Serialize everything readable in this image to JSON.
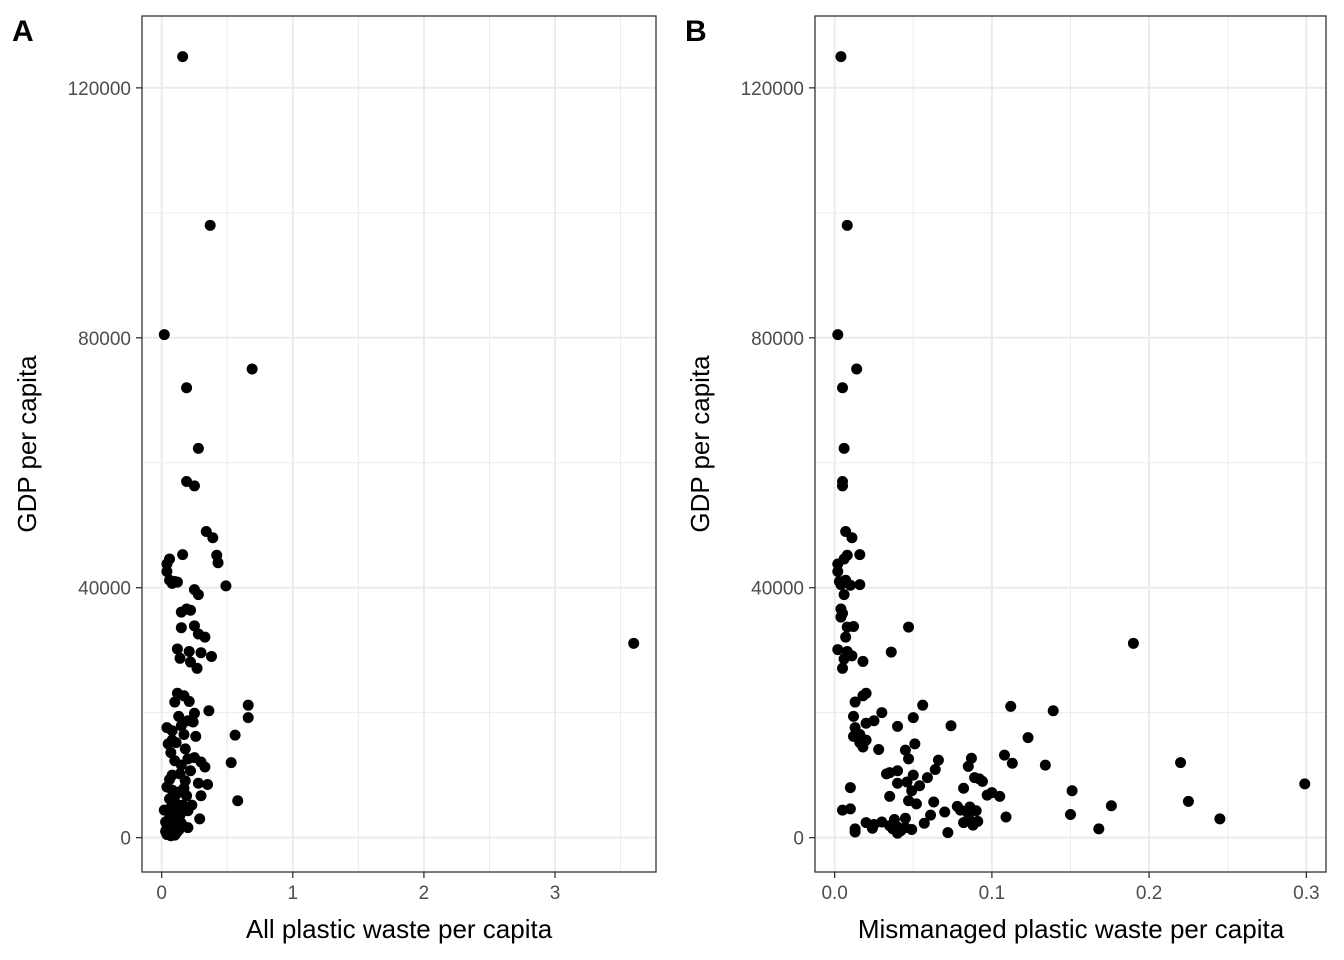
{
  "chart_data": [
    {
      "type": "scatter",
      "panel_label": "A",
      "xlabel": "All plastic waste per capita",
      "ylabel": "GDP per capita",
      "xlim": [
        -0.15,
        3.77
      ],
      "ylim": [
        -5500,
        131500
      ],
      "xticks": [
        0,
        1,
        2,
        3
      ],
      "xtick_labels": [
        "0",
        "1",
        "2",
        "3"
      ],
      "yticks": [
        0,
        40000,
        80000,
        120000
      ],
      "ytick_labels": [
        "0",
        "40000",
        "80000",
        "120000"
      ],
      "grid": true,
      "points": [
        [
          0.16,
          125000
        ],
        [
          0.37,
          98000
        ],
        [
          0.02,
          80500
        ],
        [
          0.69,
          75000
        ],
        [
          0.19,
          72000
        ],
        [
          0.28,
          62300
        ],
        [
          0.19,
          57000
        ],
        [
          0.25,
          56300
        ],
        [
          0.34,
          49000
        ],
        [
          0.39,
          48000
        ],
        [
          0.42,
          45200
        ],
        [
          0.43,
          44000
        ],
        [
          0.16,
          45300
        ],
        [
          0.06,
          44600
        ],
        [
          0.04,
          43800
        ],
        [
          0.04,
          42600
        ],
        [
          0.1,
          41000
        ],
        [
          0.06,
          41200
        ],
        [
          0.08,
          40700
        ],
        [
          0.12,
          40900
        ],
        [
          0.25,
          39700
        ],
        [
          0.49,
          40300
        ],
        [
          0.28,
          38900
        ],
        [
          0.19,
          36600
        ],
        [
          0.15,
          36100
        ],
        [
          0.22,
          36400
        ],
        [
          0.15,
          33600
        ],
        [
          0.25,
          33900
        ],
        [
          0.28,
          32600
        ],
        [
          0.33,
          32100
        ],
        [
          0.12,
          30200
        ],
        [
          0.21,
          29800
        ],
        [
          0.3,
          29600
        ],
        [
          0.38,
          29000
        ],
        [
          0.14,
          28700
        ],
        [
          0.22,
          28100
        ],
        [
          0.27,
          27100
        ],
        [
          3.6,
          31100
        ],
        [
          0.12,
          23100
        ],
        [
          0.17,
          22700
        ],
        [
          0.1,
          21700
        ],
        [
          0.21,
          21800
        ],
        [
          0.66,
          21200
        ],
        [
          0.36,
          20300
        ],
        [
          0.25,
          19900
        ],
        [
          0.66,
          19200
        ],
        [
          0.13,
          19400
        ],
        [
          0.2,
          18700
        ],
        [
          0.24,
          18500
        ],
        [
          0.04,
          17600
        ],
        [
          0.15,
          17900
        ],
        [
          0.08,
          17100
        ],
        [
          0.17,
          16500
        ],
        [
          0.26,
          16200
        ],
        [
          0.56,
          16400
        ],
        [
          0.08,
          15600
        ],
        [
          0.11,
          15200
        ],
        [
          0.05,
          15000
        ],
        [
          0.18,
          14200
        ],
        [
          0.07,
          13600
        ],
        [
          0.25,
          12800
        ],
        [
          0.1,
          12300
        ],
        [
          0.2,
          12600
        ],
        [
          0.3,
          12100
        ],
        [
          0.53,
          12000
        ],
        [
          0.15,
          11600
        ],
        [
          0.33,
          11300
        ],
        [
          0.22,
          10700
        ],
        [
          0.08,
          10000
        ],
        [
          0.14,
          10200
        ],
        [
          0.06,
          9300
        ],
        [
          0.18,
          9100
        ],
        [
          0.28,
          8700
        ],
        [
          0.35,
          8500
        ],
        [
          0.04,
          8100
        ],
        [
          0.08,
          7600
        ],
        [
          0.17,
          7900
        ],
        [
          0.13,
          7300
        ],
        [
          0.11,
          6900
        ],
        [
          0.19,
          6700
        ],
        [
          0.3,
          6700
        ],
        [
          0.06,
          6200
        ],
        [
          0.58,
          5900
        ],
        [
          0.1,
          5700
        ],
        [
          0.16,
          5200
        ],
        [
          0.23,
          5200
        ],
        [
          0.12,
          4800
        ],
        [
          0.06,
          4600
        ],
        [
          0.2,
          4300
        ],
        [
          0.02,
          4400
        ],
        [
          0.1,
          4000
        ],
        [
          0.14,
          3600
        ],
        [
          0.07,
          3500
        ],
        [
          0.08,
          3100
        ],
        [
          0.29,
          3000
        ],
        [
          0.05,
          2800
        ],
        [
          0.12,
          2600
        ],
        [
          0.03,
          2500
        ],
        [
          0.15,
          2300
        ],
        [
          0.06,
          2100
        ],
        [
          0.09,
          1900
        ],
        [
          0.2,
          1600
        ],
        [
          0.04,
          1500
        ],
        [
          0.1,
          1400
        ],
        [
          0.07,
          1300
        ],
        [
          0.13,
          1200
        ],
        [
          0.05,
          1100
        ],
        [
          0.03,
          1000
        ],
        [
          0.09,
          900
        ],
        [
          0.06,
          800
        ],
        [
          0.11,
          700
        ],
        [
          0.08,
          600
        ],
        [
          0.04,
          500
        ],
        [
          0.1,
          400
        ],
        [
          0.07,
          300
        ]
      ]
    },
    {
      "type": "scatter",
      "panel_label": "B",
      "xlabel": "Mismanaged plastic waste per capita",
      "ylabel": "GDP per capita",
      "xlim": [
        -0.0125,
        0.3125
      ],
      "ylim": [
        -5500,
        131500
      ],
      "xticks": [
        0,
        0.1,
        0.2,
        0.3
      ],
      "xtick_labels": [
        "0.0",
        "0.1",
        "0.2",
        "0.3"
      ],
      "yticks": [
        0,
        40000,
        80000,
        120000
      ],
      "ytick_labels": [
        "0",
        "40000",
        "80000",
        "120000"
      ],
      "grid": true,
      "points": [
        [
          0.004,
          125000
        ],
        [
          0.008,
          98000
        ],
        [
          0.002,
          80500
        ],
        [
          0.014,
          75000
        ],
        [
          0.005,
          72000
        ],
        [
          0.006,
          62300
        ],
        [
          0.005,
          57000
        ],
        [
          0.005,
          56300
        ],
        [
          0.007,
          49000
        ],
        [
          0.011,
          48000
        ],
        [
          0.008,
          45200
        ],
        [
          0.016,
          45300
        ],
        [
          0.006,
          44600
        ],
        [
          0.002,
          43800
        ],
        [
          0.002,
          42600
        ],
        [
          0.003,
          41000
        ],
        [
          0.004,
          40500
        ],
        [
          0.007,
          41200
        ],
        [
          0.01,
          40400
        ],
        [
          0.016,
          40500
        ],
        [
          0.006,
          38900
        ],
        [
          0.004,
          36600
        ],
        [
          0.005,
          35900
        ],
        [
          0.004,
          35300
        ],
        [
          0.008,
          33700
        ],
        [
          0.012,
          33800
        ],
        [
          0.047,
          33700
        ],
        [
          0.007,
          32100
        ],
        [
          0.002,
          30100
        ],
        [
          0.008,
          29800
        ],
        [
          0.011,
          29100
        ],
        [
          0.006,
          28600
        ],
        [
          0.018,
          28200
        ],
        [
          0.005,
          27100
        ],
        [
          0.036,
          29700
        ],
        [
          0.19,
          31100
        ],
        [
          0.02,
          23100
        ],
        [
          0.018,
          22700
        ],
        [
          0.013,
          21700
        ],
        [
          0.056,
          21200
        ],
        [
          0.112,
          21000
        ],
        [
          0.139,
          20300
        ],
        [
          0.03,
          20000
        ],
        [
          0.012,
          19400
        ],
        [
          0.05,
          19200
        ],
        [
          0.025,
          18700
        ],
        [
          0.02,
          18300
        ],
        [
          0.013,
          17600
        ],
        [
          0.04,
          17800
        ],
        [
          0.074,
          17900
        ],
        [
          0.016,
          16500
        ],
        [
          0.012,
          16200
        ],
        [
          0.123,
          16000
        ],
        [
          0.02,
          15600
        ],
        [
          0.016,
          15200
        ],
        [
          0.051,
          15000
        ],
        [
          0.018,
          14500
        ],
        [
          0.028,
          14100
        ],
        [
          0.045,
          14000
        ],
        [
          0.108,
          13200
        ],
        [
          0.047,
          12600
        ],
        [
          0.066,
          12400
        ],
        [
          0.087,
          12700
        ],
        [
          0.113,
          11900
        ],
        [
          0.22,
          12000
        ],
        [
          0.134,
          11600
        ],
        [
          0.085,
          11400
        ],
        [
          0.064,
          10900
        ],
        [
          0.04,
          10700
        ],
        [
          0.035,
          10400
        ],
        [
          0.033,
          10200
        ],
        [
          0.05,
          10000
        ],
        [
          0.059,
          9600
        ],
        [
          0.089,
          9600
        ],
        [
          0.092,
          9400
        ],
        [
          0.094,
          9000
        ],
        [
          0.046,
          8900
        ],
        [
          0.04,
          8700
        ],
        [
          0.054,
          8300
        ],
        [
          0.082,
          7900
        ],
        [
          0.01,
          8000
        ],
        [
          0.299,
          8600
        ],
        [
          0.151,
          7500
        ],
        [
          0.049,
          7500
        ],
        [
          0.1,
          7200
        ],
        [
          0.097,
          6800
        ],
        [
          0.105,
          6600
        ],
        [
          0.035,
          6600
        ],
        [
          0.047,
          5900
        ],
        [
          0.063,
          5700
        ],
        [
          0.225,
          5800
        ],
        [
          0.052,
          5400
        ],
        [
          0.176,
          5100
        ],
        [
          0.078,
          5000
        ],
        [
          0.086,
          4900
        ],
        [
          0.08,
          4400
        ],
        [
          0.005,
          4400
        ],
        [
          0.01,
          4600
        ],
        [
          0.09,
          4300
        ],
        [
          0.07,
          4100
        ],
        [
          0.085,
          3800
        ],
        [
          0.061,
          3600
        ],
        [
          0.15,
          3700
        ],
        [
          0.109,
          3300
        ],
        [
          0.245,
          3000
        ],
        [
          0.045,
          3100
        ],
        [
          0.038,
          2900
        ],
        [
          0.086,
          2800
        ],
        [
          0.091,
          2600
        ],
        [
          0.082,
          2400
        ],
        [
          0.03,
          2500
        ],
        [
          0.02,
          2400
        ],
        [
          0.057,
          2300
        ],
        [
          0.088,
          2000
        ],
        [
          0.025,
          2100
        ],
        [
          0.035,
          1900
        ],
        [
          0.04,
          1700
        ],
        [
          0.045,
          1600
        ],
        [
          0.024,
          1500
        ],
        [
          0.037,
          1400
        ],
        [
          0.013,
          1400
        ],
        [
          0.049,
          1300
        ],
        [
          0.168,
          1400
        ],
        [
          0.042,
          1100
        ],
        [
          0.013,
          900
        ],
        [
          0.072,
          800
        ],
        [
          0.04,
          700
        ]
      ]
    }
  ]
}
